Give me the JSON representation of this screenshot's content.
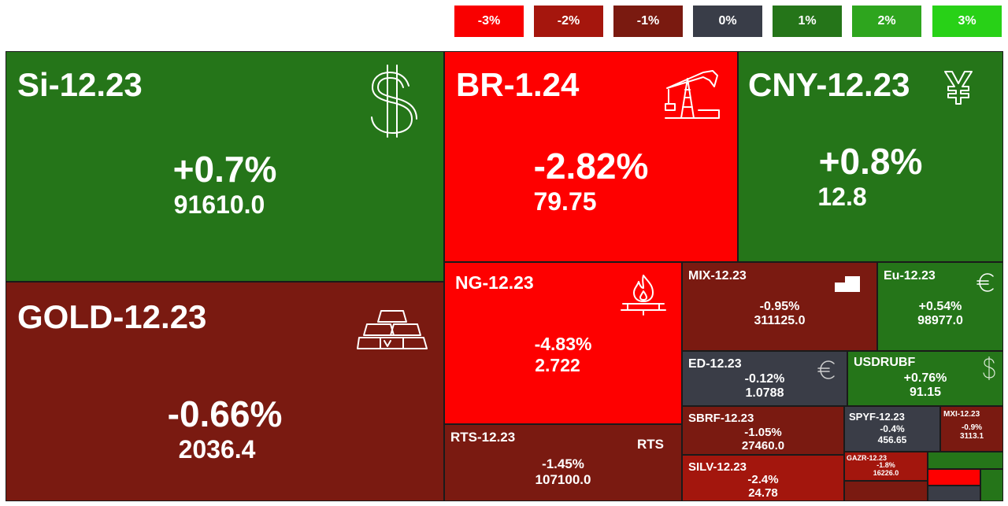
{
  "legend": [
    {
      "label": "-3%",
      "color": "#f90000"
    },
    {
      "label": "-2%",
      "color": "#a5160d"
    },
    {
      "label": "-1%",
      "color": "#7a1a10"
    },
    {
      "label": "0%",
      "color": "#393d48"
    },
    {
      "label": "1%",
      "color": "#257519"
    },
    {
      "label": "2%",
      "color": "#2ea51e"
    },
    {
      "label": "3%",
      "color": "#28d117"
    }
  ],
  "tiles": {
    "si": {
      "name": "Si-12.23",
      "pct": "+0.7%",
      "price": "91610.0",
      "icon": "dollar-icon"
    },
    "gold": {
      "name": "GOLD-12.23",
      "pct": "-0.66%",
      "price": "2036.4",
      "icon": "gold-bars-icon"
    },
    "br": {
      "name": "BR-1.24",
      "pct": "-2.82%",
      "price": "79.75",
      "icon": "oil-pump-icon"
    },
    "cny": {
      "name": "CNY-12.23",
      "pct": "+0.8%",
      "price": "12.8",
      "icon": "yuan-icon"
    },
    "ng": {
      "name": "NG-12.23",
      "pct": "-4.83%",
      "price": "2.722",
      "icon": "gas-flame-icon"
    },
    "rts": {
      "name": "RTS-12.23",
      "pct": "-1.45%",
      "price": "107100.0",
      "badge": "RTS"
    },
    "mix": {
      "name": "MIX-12.23",
      "pct": "-0.95%",
      "price": "311125.0",
      "icon": "bar-chart-icon"
    },
    "eu": {
      "name": "Eu-12.23",
      "pct": "+0.54%",
      "price": "98977.0",
      "icon": "euro-icon"
    },
    "ed": {
      "name": "ED-12.23",
      "pct": "-0.12%",
      "price": "1.0788",
      "icon": "euro-icon"
    },
    "usdrubf": {
      "name": "USDRUBF",
      "pct": "+0.76%",
      "price": "91.15",
      "icon": "dollar-icon"
    },
    "sbrf": {
      "name": "SBRF-12.23",
      "pct": "-1.05%",
      "price": "27460.0"
    },
    "spyf": {
      "name": "SPYF-12.23",
      "pct": "-0.4%",
      "price": "456.65"
    },
    "mxi": {
      "name": "MXI-12.23",
      "pct": "-0.9%",
      "price": "3113.1"
    },
    "silv": {
      "name": "SILV-12.23",
      "pct": "-2.4%",
      "price": "24.78"
    },
    "gazr": {
      "name": "GAZR-12.23",
      "pct": "-1.8%",
      "price": "16226.0"
    }
  }
}
